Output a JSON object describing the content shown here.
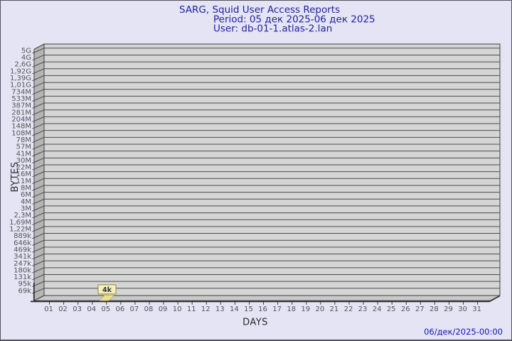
{
  "header": {
    "title": "SARG, Squid User Access Reports",
    "period": "Period: 05 дек 2025-06 дек 2025",
    "user": "User: db-01-1.atlas-2.lan"
  },
  "footer": {
    "generated": "06/дек/2025-00:00"
  },
  "chart_data": {
    "type": "bar",
    "title": "SARG, Squid User Access Reports",
    "subtitle": "Period: 05 дек 2025-06 дек 2025 / User: db-01-1.atlas-2.lan",
    "xlabel": "DAYS",
    "ylabel": "BYTES",
    "y_scale": "logarithmic",
    "grid": "horizontal",
    "x_categories": [
      "01",
      "02",
      "03",
      "04",
      "05",
      "06",
      "07",
      "08",
      "09",
      "10",
      "11",
      "12",
      "13",
      "14",
      "15",
      "16",
      "17",
      "18",
      "19",
      "20",
      "21",
      "22",
      "23",
      "24",
      "25",
      "26",
      "27",
      "28",
      "29",
      "30",
      "31"
    ],
    "y_tick_labels_top_to_bottom": [
      "5G",
      "4G",
      "2,6G",
      "1,92G",
      "1,39G",
      "1,01G",
      "734M",
      "533M",
      "387M",
      "281M",
      "204M",
      "148M",
      "108M",
      "78M",
      "57M",
      "41M",
      "30M",
      "22M",
      "16M",
      "11M",
      "8M",
      "6M",
      "4M",
      "3M",
      "2,3M",
      "1,69M",
      "1,22M",
      "889k",
      "646k",
      "469k",
      "341k",
      "247k",
      "180k",
      "131k",
      "95k",
      "69k"
    ],
    "bars": [
      {
        "x": "05",
        "label": "4k"
      }
    ],
    "colors": {
      "background": "#e4e4f4",
      "title": "#22229e",
      "timestamp": "#1414b4",
      "plot_fill": "#d5d5d5",
      "wall_fill": "#b5b5b5",
      "floor_fill": "#c9c9c9",
      "grid_line": "#4b4b4b",
      "tick_text": "#555555",
      "axis_text": "#2b2b2b",
      "bar_fill": "#efe193",
      "bar_edge": "#b8a53e",
      "callout_fill": "#f5eebe",
      "callout_border": "#8f8f33",
      "callout_text": "#333333"
    }
  }
}
